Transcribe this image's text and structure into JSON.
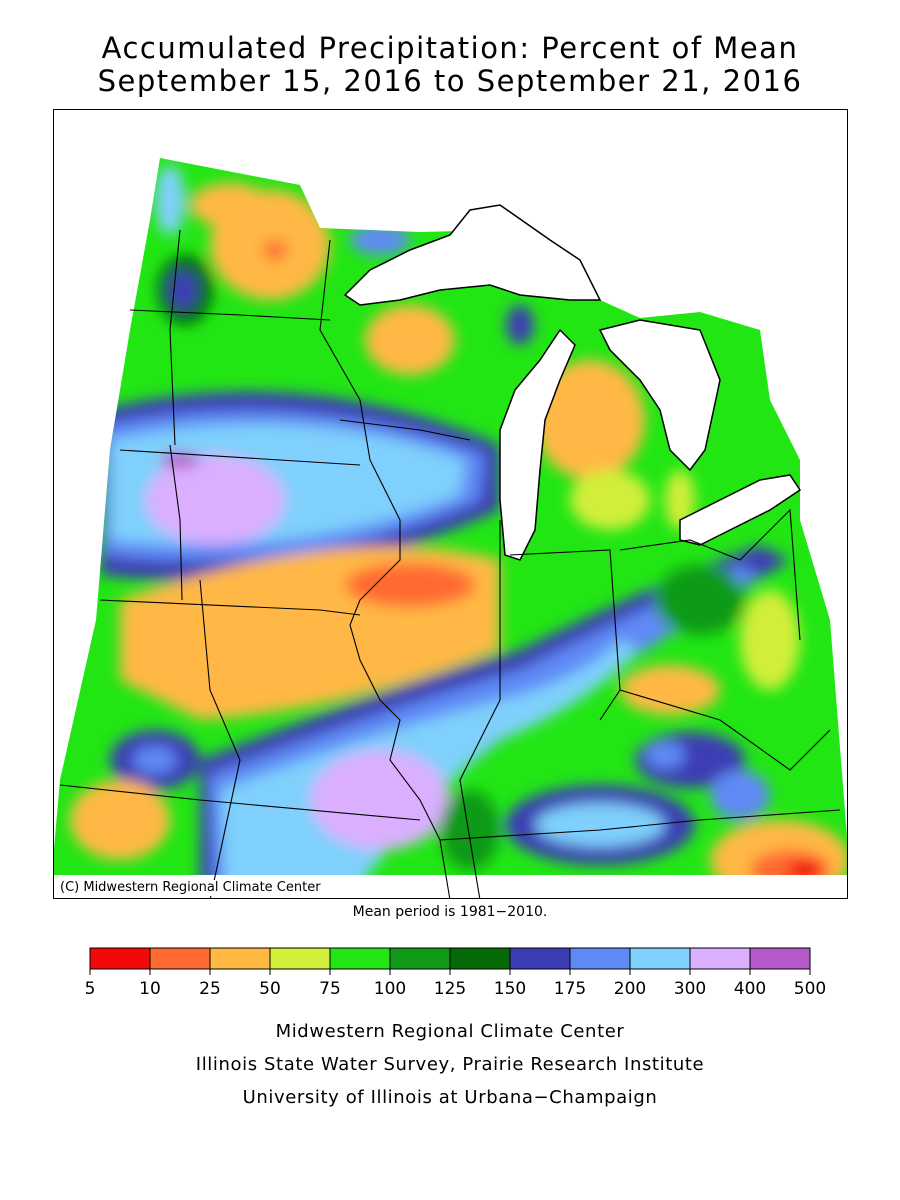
{
  "title": {
    "line1": "Accumulated Precipitation: Percent of Mean",
    "line2": "September 15, 2016 to September 21, 2016"
  },
  "map": {
    "copyright": "(C) Midwestern Regional Climate Center",
    "mean_period": "Mean period is 1981−2010.",
    "colors": {
      "background": "#ffffff",
      "lakes": "#ffffff",
      "borders": "#000000"
    }
  },
  "legend": {
    "ticks": [
      "5",
      "10",
      "25",
      "50",
      "75",
      "100",
      "125",
      "150",
      "175",
      "200",
      "300",
      "400",
      "500"
    ],
    "colors": [
      "#f20a0a",
      "#ff6a30",
      "#ffb844",
      "#d2ee3a",
      "#22e614",
      "#119a18",
      "#056a06",
      "#3c3cb4",
      "#5f8af6",
      "#7fd0fc",
      "#daafff",
      "#b45ac8"
    ]
  },
  "footer": {
    "line1": "Midwestern Regional Climate Center",
    "line2": "Illinois State Water Survey, Prairie Research Institute",
    "line3": "University of Illinois at Urbana−Champaign"
  }
}
